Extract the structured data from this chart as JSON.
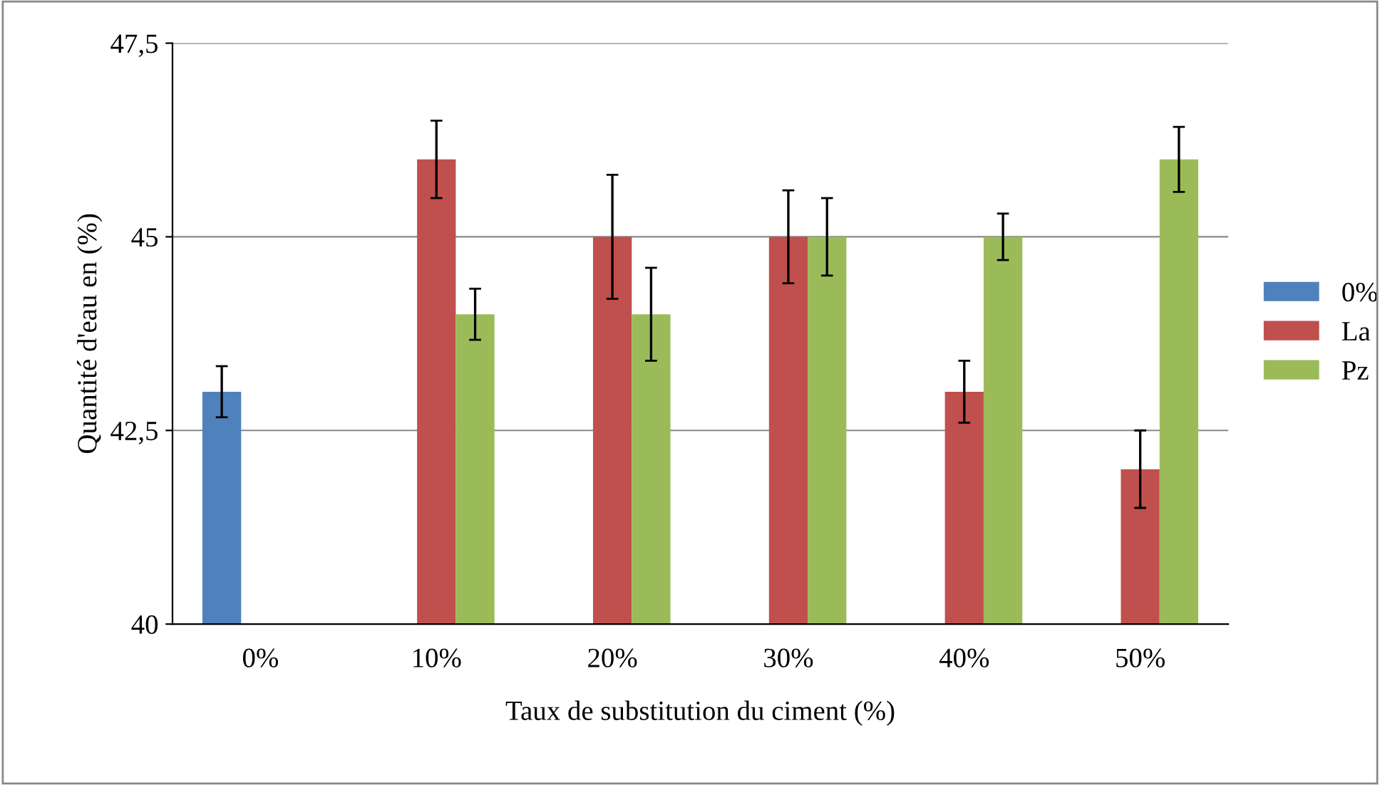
{
  "chart_data": {
    "type": "bar",
    "xlabel": "Taux de substitution du ciment (%)",
    "ylabel": "Quantité d'eau en (%)",
    "categories": [
      "0%",
      "10%",
      "20%",
      "30%",
      "40%",
      "50%"
    ],
    "series": [
      {
        "name": "0%",
        "color": "#4f81bd",
        "values": [
          43,
          null,
          null,
          null,
          null,
          null
        ],
        "errors": [
          0.33,
          null,
          null,
          null,
          null,
          null
        ]
      },
      {
        "name": "La",
        "color": "#c0504d",
        "values": [
          null,
          46,
          45,
          45,
          43,
          42
        ],
        "errors": [
          null,
          0.5,
          0.8,
          0.6,
          0.4,
          0.5
        ]
      },
      {
        "name": "Pz",
        "color": "#9bbb59",
        "values": [
          null,
          44,
          44,
          45,
          45,
          46
        ],
        "errors": [
          null,
          0.33,
          0.6,
          0.5,
          0.3,
          0.42
        ]
      }
    ],
    "ylim": [
      40,
      47.5
    ],
    "yticks": [
      40,
      {
        "value": 42.5,
        "label": "42,5"
      },
      45,
      {
        "value": 47.5,
        "label": "47,5"
      }
    ],
    "grid": "y",
    "legend": "right"
  }
}
